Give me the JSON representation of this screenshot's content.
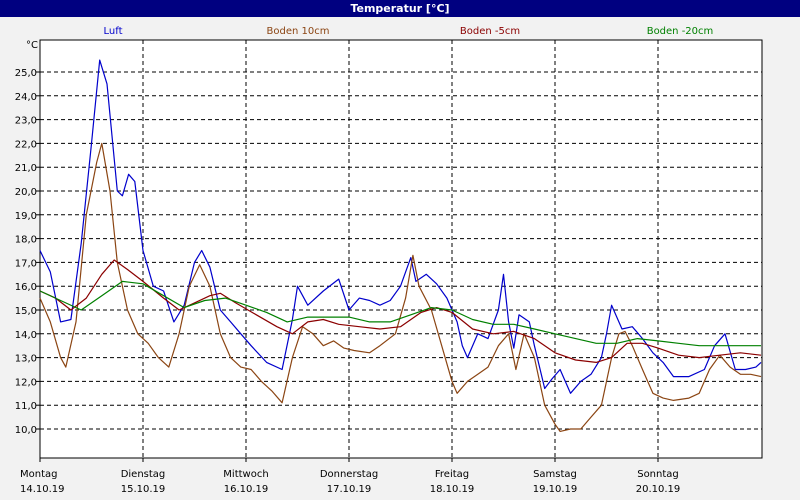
{
  "window": {
    "title": "Temperatur [°C]"
  },
  "colors": {
    "luft": "#0000cc",
    "boden10": "#8b4513",
    "boden5": "#8b0000",
    "boden20": "#008000",
    "titlebar": "#000080",
    "background": "#f2f2f2"
  },
  "chart_data": {
    "type": "line",
    "title": "Temperatur [°C]",
    "ylabel": "°C",
    "ylim": [
      9.0,
      26.5
    ],
    "yticks": [
      "25,0",
      "24,0",
      "23,0",
      "22,0",
      "21,0",
      "20,0",
      "19,0",
      "18,0",
      "17,0",
      "16,0",
      "15,0",
      "14,0",
      "13,0",
      "12,0",
      "11,0",
      "10,0"
    ],
    "grid": true,
    "legend_position": "top",
    "x_range_days": [
      0,
      7
    ],
    "days": [
      {
        "name": "Montag",
        "date": "14.10.19"
      },
      {
        "name": "Dienstag",
        "date": "15.10.19"
      },
      {
        "name": "Mittwoch",
        "date": "16.10.19"
      },
      {
        "name": "Donnerstag",
        "date": "17.10.19"
      },
      {
        "name": "Freitag",
        "date": "18.10.19"
      },
      {
        "name": "Samstag",
        "date": "19.10.19"
      },
      {
        "name": "Sonntag",
        "date": "20.10.19"
      }
    ],
    "series": [
      {
        "name": "Luft",
        "color": "#0000cc",
        "points": [
          [
            0.0,
            17.5
          ],
          [
            0.1,
            16.6
          ],
          [
            0.2,
            14.5
          ],
          [
            0.3,
            14.6
          ],
          [
            0.4,
            17.8
          ],
          [
            0.5,
            22.0
          ],
          [
            0.58,
            25.5
          ],
          [
            0.65,
            24.5
          ],
          [
            0.75,
            20.0
          ],
          [
            0.8,
            19.8
          ],
          [
            0.86,
            20.7
          ],
          [
            0.92,
            20.4
          ],
          [
            1.0,
            17.5
          ],
          [
            1.1,
            16.0
          ],
          [
            1.2,
            15.8
          ],
          [
            1.3,
            14.5
          ],
          [
            1.4,
            15.2
          ],
          [
            1.5,
            17.0
          ],
          [
            1.57,
            17.5
          ],
          [
            1.65,
            16.8
          ],
          [
            1.75,
            15.0
          ],
          [
            1.85,
            14.5
          ],
          [
            1.95,
            14.0
          ],
          [
            2.05,
            13.5
          ],
          [
            2.2,
            12.8
          ],
          [
            2.35,
            12.5
          ],
          [
            2.45,
            14.6
          ],
          [
            2.5,
            16.0
          ],
          [
            2.6,
            15.2
          ],
          [
            2.75,
            15.8
          ],
          [
            2.9,
            16.3
          ],
          [
            3.0,
            15.0
          ],
          [
            3.1,
            15.5
          ],
          [
            3.2,
            15.4
          ],
          [
            3.3,
            15.2
          ],
          [
            3.4,
            15.4
          ],
          [
            3.5,
            16.0
          ],
          [
            3.6,
            17.2
          ],
          [
            3.65,
            16.2
          ],
          [
            3.75,
            16.5
          ],
          [
            3.85,
            16.1
          ],
          [
            3.95,
            15.5
          ],
          [
            4.05,
            14.5
          ],
          [
            4.1,
            13.5
          ],
          [
            4.15,
            13.0
          ],
          [
            4.25,
            14.0
          ],
          [
            4.35,
            13.8
          ],
          [
            4.45,
            15.0
          ],
          [
            4.5,
            16.5
          ],
          [
            4.55,
            14.5
          ],
          [
            4.6,
            13.4
          ],
          [
            4.65,
            14.8
          ],
          [
            4.75,
            14.5
          ],
          [
            4.8,
            13.5
          ],
          [
            4.9,
            11.7
          ],
          [
            4.97,
            12.1
          ],
          [
            5.05,
            12.5
          ],
          [
            5.15,
            11.5
          ],
          [
            5.25,
            12.0
          ],
          [
            5.35,
            12.3
          ],
          [
            5.45,
            13.0
          ],
          [
            5.5,
            14.0
          ],
          [
            5.55,
            15.2
          ],
          [
            5.65,
            14.2
          ],
          [
            5.75,
            14.3
          ],
          [
            5.85,
            13.8
          ],
          [
            5.95,
            13.2
          ],
          [
            6.05,
            12.8
          ],
          [
            6.15,
            12.2
          ],
          [
            6.3,
            12.2
          ],
          [
            6.45,
            12.5
          ],
          [
            6.55,
            13.5
          ],
          [
            6.65,
            14.0
          ],
          [
            6.75,
            12.5
          ],
          [
            6.85,
            12.5
          ],
          [
            6.95,
            12.6
          ],
          [
            7.0,
            12.8
          ]
        ]
      },
      {
        "name": "Boden 10cm",
        "color": "#8b4513",
        "points": [
          [
            0.0,
            15.5
          ],
          [
            0.1,
            14.5
          ],
          [
            0.2,
            13.0
          ],
          [
            0.25,
            12.6
          ],
          [
            0.35,
            14.5
          ],
          [
            0.45,
            19.0
          ],
          [
            0.55,
            21.2
          ],
          [
            0.6,
            22.0
          ],
          [
            0.68,
            20.0
          ],
          [
            0.75,
            17.0
          ],
          [
            0.85,
            15.0
          ],
          [
            0.95,
            14.0
          ],
          [
            1.05,
            13.6
          ],
          [
            1.15,
            13.0
          ],
          [
            1.25,
            12.6
          ],
          [
            1.35,
            14.0
          ],
          [
            1.45,
            16.0
          ],
          [
            1.55,
            16.9
          ],
          [
            1.65,
            16.0
          ],
          [
            1.75,
            14.0
          ],
          [
            1.85,
            13.0
          ],
          [
            1.95,
            12.6
          ],
          [
            2.05,
            12.5
          ],
          [
            2.15,
            12.0
          ],
          [
            2.25,
            11.6
          ],
          [
            2.35,
            11.1
          ],
          [
            2.45,
            13.0
          ],
          [
            2.55,
            14.3
          ],
          [
            2.65,
            14.0
          ],
          [
            2.75,
            13.5
          ],
          [
            2.85,
            13.7
          ],
          [
            2.95,
            13.4
          ],
          [
            3.05,
            13.3
          ],
          [
            3.2,
            13.2
          ],
          [
            3.3,
            13.5
          ],
          [
            3.45,
            14.0
          ],
          [
            3.55,
            15.5
          ],
          [
            3.62,
            17.3
          ],
          [
            3.68,
            16.0
          ],
          [
            3.8,
            15.0
          ],
          [
            3.9,
            13.5
          ],
          [
            4.0,
            12.0
          ],
          [
            4.05,
            11.5
          ],
          [
            4.15,
            12.0
          ],
          [
            4.25,
            12.3
          ],
          [
            4.35,
            12.6
          ],
          [
            4.45,
            13.5
          ],
          [
            4.55,
            14.0
          ],
          [
            4.62,
            12.5
          ],
          [
            4.7,
            14.0
          ],
          [
            4.8,
            13.0
          ],
          [
            4.9,
            11.0
          ],
          [
            5.0,
            10.2
          ],
          [
            5.05,
            9.9
          ],
          [
            5.15,
            10.0
          ],
          [
            5.25,
            10.0
          ],
          [
            5.35,
            10.5
          ],
          [
            5.45,
            11.0
          ],
          [
            5.55,
            13.0
          ],
          [
            5.62,
            14.0
          ],
          [
            5.68,
            14.1
          ],
          [
            5.75,
            13.5
          ],
          [
            5.85,
            12.5
          ],
          [
            5.95,
            11.5
          ],
          [
            6.05,
            11.3
          ],
          [
            6.15,
            11.2
          ],
          [
            6.3,
            11.3
          ],
          [
            6.4,
            11.5
          ],
          [
            6.5,
            12.5
          ],
          [
            6.6,
            13.1
          ],
          [
            6.7,
            12.6
          ],
          [
            6.8,
            12.3
          ],
          [
            6.9,
            12.3
          ],
          [
            7.0,
            12.2
          ]
        ]
      },
      {
        "name": "Boden -5cm",
        "color": "#8b0000",
        "points": [
          [
            0.0,
            15.8
          ],
          [
            0.15,
            15.5
          ],
          [
            0.3,
            15.0
          ],
          [
            0.45,
            15.5
          ],
          [
            0.6,
            16.5
          ],
          [
            0.72,
            17.1
          ],
          [
            0.85,
            16.7
          ],
          [
            1.0,
            16.2
          ],
          [
            1.2,
            15.5
          ],
          [
            1.35,
            15.0
          ],
          [
            1.5,
            15.3
          ],
          [
            1.65,
            15.6
          ],
          [
            1.75,
            15.7
          ],
          [
            1.9,
            15.3
          ],
          [
            2.1,
            14.8
          ],
          [
            2.3,
            14.3
          ],
          [
            2.45,
            14.0
          ],
          [
            2.6,
            14.5
          ],
          [
            2.75,
            14.6
          ],
          [
            2.9,
            14.4
          ],
          [
            3.1,
            14.3
          ],
          [
            3.3,
            14.2
          ],
          [
            3.5,
            14.3
          ],
          [
            3.7,
            14.9
          ],
          [
            3.85,
            15.1
          ],
          [
            4.0,
            14.9
          ],
          [
            4.2,
            14.2
          ],
          [
            4.4,
            14.0
          ],
          [
            4.6,
            14.1
          ],
          [
            4.8,
            13.8
          ],
          [
            5.0,
            13.2
          ],
          [
            5.2,
            12.9
          ],
          [
            5.4,
            12.8
          ],
          [
            5.55,
            13.0
          ],
          [
            5.7,
            13.6
          ],
          [
            5.85,
            13.6
          ],
          [
            6.0,
            13.4
          ],
          [
            6.2,
            13.1
          ],
          [
            6.4,
            13.0
          ],
          [
            6.6,
            13.1
          ],
          [
            6.8,
            13.2
          ],
          [
            7.0,
            13.1
          ]
        ]
      },
      {
        "name": "Boden -20cm",
        "color": "#008000",
        "points": [
          [
            0.0,
            15.8
          ],
          [
            0.2,
            15.4
          ],
          [
            0.4,
            15.0
          ],
          [
            0.6,
            15.6
          ],
          [
            0.8,
            16.2
          ],
          [
            1.0,
            16.1
          ],
          [
            1.2,
            15.6
          ],
          [
            1.4,
            15.1
          ],
          [
            1.6,
            15.4
          ],
          [
            1.8,
            15.5
          ],
          [
            2.0,
            15.2
          ],
          [
            2.2,
            14.9
          ],
          [
            2.4,
            14.5
          ],
          [
            2.6,
            14.7
          ],
          [
            2.8,
            14.7
          ],
          [
            3.0,
            14.7
          ],
          [
            3.2,
            14.5
          ],
          [
            3.4,
            14.5
          ],
          [
            3.6,
            14.8
          ],
          [
            3.8,
            15.1
          ],
          [
            4.0,
            15.0
          ],
          [
            4.2,
            14.6
          ],
          [
            4.4,
            14.4
          ],
          [
            4.6,
            14.4
          ],
          [
            4.8,
            14.2
          ],
          [
            5.0,
            14.0
          ],
          [
            5.2,
            13.8
          ],
          [
            5.4,
            13.6
          ],
          [
            5.6,
            13.6
          ],
          [
            5.8,
            13.8
          ],
          [
            6.0,
            13.7
          ],
          [
            6.2,
            13.6
          ],
          [
            6.4,
            13.5
          ],
          [
            6.6,
            13.5
          ],
          [
            6.8,
            13.5
          ],
          [
            7.0,
            13.5
          ]
        ]
      }
    ]
  }
}
